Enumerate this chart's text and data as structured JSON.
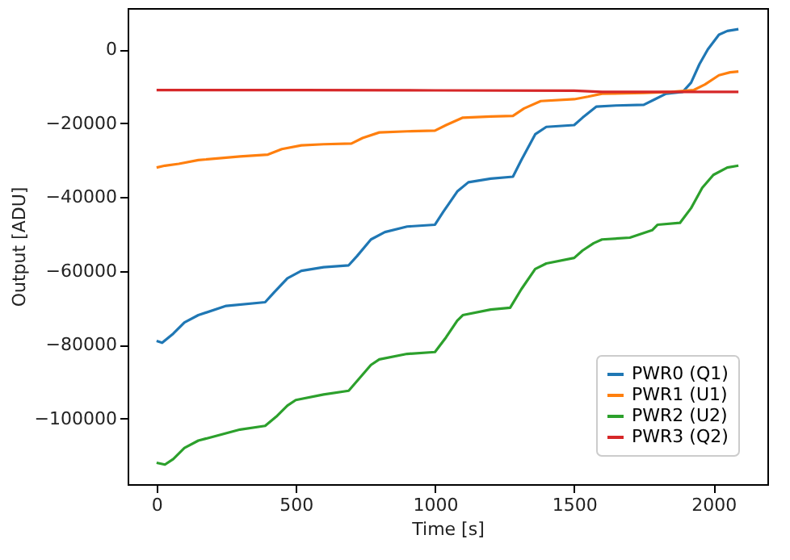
{
  "chart_data": {
    "type": "line",
    "xlabel": "Time [s]",
    "ylabel": "Output [ADU]",
    "xlim": [
      -104,
      2194
    ],
    "xticks": [
      0,
      500,
      1000,
      1500,
      2000
    ],
    "ylim": [
      -117800,
      11200
    ],
    "yticks": [
      -100000,
      -80000,
      -60000,
      -40000,
      -20000,
      0
    ],
    "grid": false,
    "legend": "bottom right",
    "marker": "none",
    "line_style": "solid",
    "series": [
      {
        "name": "PWR0 (Q1)",
        "color": "#1f77b4",
        "x": [
          0,
          20,
          60,
          100,
          150,
          250,
          390,
          420,
          470,
          520,
          600,
          690,
          720,
          770,
          820,
          900,
          1000,
          1030,
          1080,
          1120,
          1200,
          1280,
          1310,
          1360,
          1400,
          1500,
          1530,
          1580,
          1650,
          1750,
          1790,
          1830,
          1890,
          1920,
          1950,
          1980,
          2020,
          2050,
          2090
        ],
        "values": [
          -79000,
          -79500,
          -77000,
          -74000,
          -72000,
          -69500,
          -68500,
          -66000,
          -62000,
          -60000,
          -59000,
          -58500,
          -56000,
          -51500,
          -49500,
          -48000,
          -47500,
          -44000,
          -38500,
          -36000,
          -35000,
          -34500,
          -30000,
          -23000,
          -21000,
          -20500,
          -18500,
          -15500,
          -15200,
          -15000,
          -13500,
          -12000,
          -11500,
          -9000,
          -4000,
          0,
          4000,
          5000,
          5500
        ]
      },
      {
        "name": "PWR1 (U1)",
        "color": "#ff7f0e",
        "x": [
          0,
          30,
          80,
          150,
          300,
          400,
          450,
          520,
          600,
          700,
          740,
          800,
          900,
          1000,
          1040,
          1100,
          1200,
          1280,
          1320,
          1380,
          1500,
          1550,
          1600,
          1750,
          1850,
          1930,
          1970,
          2020,
          2060,
          2090
        ],
        "values": [
          -32000,
          -31500,
          -31000,
          -30000,
          -29000,
          -28500,
          -27000,
          -26000,
          -25700,
          -25500,
          -24000,
          -22500,
          -22200,
          -22000,
          -20500,
          -18500,
          -18200,
          -18000,
          -16000,
          -14000,
          -13500,
          -12800,
          -12000,
          -11800,
          -11500,
          -11000,
          -9500,
          -7000,
          -6200,
          -6000
        ]
      },
      {
        "name": "PWR2 (U2)",
        "color": "#2ca02c",
        "x": [
          0,
          30,
          60,
          100,
          150,
          300,
          390,
          430,
          470,
          500,
          600,
          690,
          730,
          770,
          800,
          900,
          1000,
          1040,
          1080,
          1100,
          1200,
          1270,
          1310,
          1360,
          1400,
          1500,
          1530,
          1570,
          1600,
          1700,
          1780,
          1800,
          1880,
          1920,
          1960,
          2000,
          2050,
          2090
        ],
        "values": [
          -112000,
          -112500,
          -111000,
          -108000,
          -106000,
          -103000,
          -102000,
          -99500,
          -96500,
          -95000,
          -93500,
          -92500,
          -89000,
          -85500,
          -84000,
          -82500,
          -82000,
          -78000,
          -73500,
          -72000,
          -70500,
          -70000,
          -65000,
          -59500,
          -58000,
          -56500,
          -54500,
          -52500,
          -51500,
          -51000,
          -49000,
          -47500,
          -47000,
          -43000,
          -37500,
          -34000,
          -32000,
          -31500
        ]
      },
      {
        "name": "PWR3 (Q2)",
        "color": "#d62728",
        "x": [
          0,
          500,
          1000,
          1500,
          1600,
          2090
        ],
        "values": [
          -11000,
          -11000,
          -11100,
          -11200,
          -11500,
          -11500
        ]
      }
    ]
  }
}
